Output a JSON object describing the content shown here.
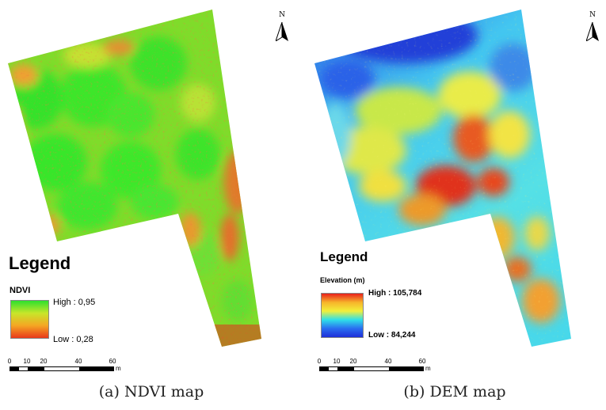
{
  "panels": [
    {
      "caption": "(a) NDVI map",
      "north_label": "N",
      "legend": {
        "title": "Legend",
        "layer": "NDVI",
        "high": "High : 0,95",
        "low": "Low : 0,28",
        "ramp_colors": [
          "#2ee02e",
          "#c8e62a",
          "#f5a623",
          "#e8391b"
        ]
      },
      "scalebar": {
        "ticks": [
          "0",
          "10",
          "20",
          "40",
          "60"
        ],
        "unit": "m"
      }
    },
    {
      "caption": "(b) DEM map",
      "north_label": "N",
      "legend": {
        "title": "Legend",
        "layer": "Elevation (m)",
        "high": "High : 105,784",
        "low": "Low : 84,244",
        "ramp_colors": [
          "#e8201b",
          "#f7b42a",
          "#f2ef3a",
          "#2fe0e8",
          "#2a6ef0",
          "#1f2fd8"
        ]
      },
      "scalebar": {
        "ticks": [
          "0",
          "10",
          "20",
          "40",
          "60"
        ],
        "unit": "m"
      }
    }
  ]
}
